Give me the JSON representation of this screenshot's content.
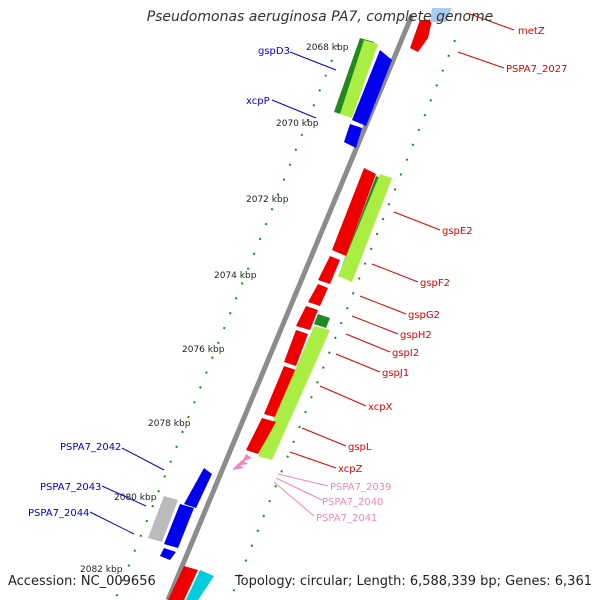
{
  "title": "Pseudomonas aeruginosa PA7, complete genome",
  "accession": "Accession: NC_009656",
  "topology": "Topology: circular; Length: 6,588,339 bp; Genes: 6,361",
  "colors": {
    "backbone": "#8c8c8c",
    "forward_label": "#dd0000",
    "reverse_label": "#0000cc",
    "rna_label": "#ee88bb",
    "gene_red": "#ee0000",
    "gene_blue": "#0000ee",
    "gene_lime": "#aaee44",
    "gene_green": "#228822",
    "gene_cyan": "#00ccdd",
    "gene_gray": "#bbbbbb",
    "gene_pink": "#ee88bb",
    "tick_green": "#228822"
  },
  "kbp_ticks": [
    "2068 kbp",
    "2070 kbp",
    "2072 kbp",
    "2074 kbp",
    "2076 kbp",
    "2078 kbp",
    "2080 kbp",
    "2082 kbp"
  ],
  "forward_labels": [
    "metZ",
    "PSPA7_2027",
    "gspE2",
    "gspF2",
    "gspG2",
    "gspH2",
    "gspI2",
    "gspJ1",
    "xcpX",
    "gspL",
    "xcpZ"
  ],
  "rna_labels": [
    "PSPA7_2039",
    "PSPA7_2040",
    "PSPA7_2041"
  ],
  "reverse_labels": [
    "gspD3",
    "xcpP",
    "PSPA7_2042",
    "PSPA7_2043",
    "PSPA7_2044"
  ]
}
